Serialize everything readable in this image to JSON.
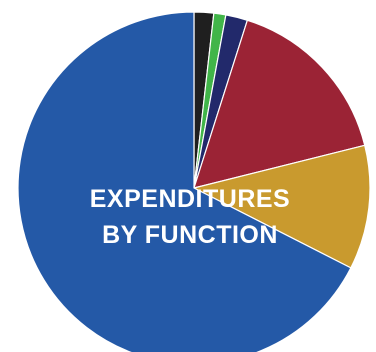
{
  "chart_data": {
    "type": "pie",
    "title_lines": [
      "EXPENDITURES",
      "BY FUNCTION"
    ],
    "start": "top",
    "direction": "clockwise",
    "legend": "none",
    "slices": [
      {
        "value": 1.8,
        "color": "#1f1f1f"
      },
      {
        "value": 1.1,
        "color": "#41b549"
      },
      {
        "value": 2.0,
        "color": "#22296b"
      },
      {
        "value": 16.2,
        "color": "#9b2335"
      },
      {
        "value": 11.4,
        "color": "#c99a2e"
      },
      {
        "value": 67.5,
        "color": "#2459a7"
      }
    ]
  }
}
